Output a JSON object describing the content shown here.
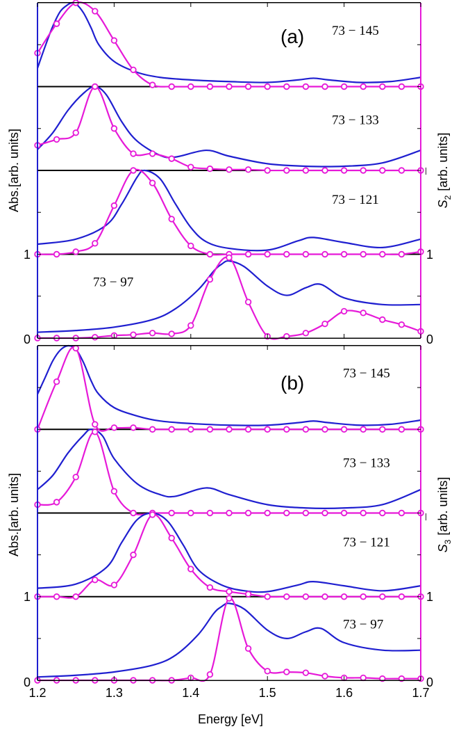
{
  "colors": {
    "absorption": "#1f1fd0",
    "spectrum": "#e619d8",
    "baseline": "#000000",
    "frame": "#000000"
  },
  "chart_data": [
    {
      "type": "line",
      "panel": "(a)",
      "xlabel": "Energy [eV]",
      "ylabel_left": "Abs.[arb. units]",
      "ylabel_right_symbol": "S",
      "ylabel_right_subscript": "2",
      "ylabel_right_units": "[arb. units]",
      "xlim": [
        1.2,
        1.7
      ],
      "x_ticks": [
        "1.2",
        "1.3",
        "1.4",
        "1.5",
        "1.6",
        "1.7"
      ],
      "y_ticks_left": [
        "0",
        "1"
      ],
      "y_ticks_right": [
        "0",
        "1"
      ],
      "traces": [
        {
          "label": "73 − 145",
          "offset": 3,
          "absorption": {
            "x": [
              1.2,
              1.21,
              1.22,
              1.23,
              1.24,
              1.245,
              1.25,
              1.26,
              1.27,
              1.28,
              1.3,
              1.33,
              1.36,
              1.4,
              1.45,
              1.5,
              1.54,
              1.56,
              1.58,
              1.62,
              1.66,
              1.7
            ],
            "y": [
              0.22,
              0.48,
              0.72,
              0.9,
              0.98,
              1.0,
              0.99,
              0.88,
              0.7,
              0.5,
              0.3,
              0.17,
              0.11,
              0.08,
              0.06,
              0.05,
              0.08,
              0.1,
              0.08,
              0.05,
              0.06,
              0.11
            ]
          },
          "spectrum": {
            "x": [
              1.2,
              1.225,
              1.25,
              1.275,
              1.3,
              1.325,
              1.35,
              1.375,
              1.4,
              1.425,
              1.45,
              1.475,
              1.5,
              1.525,
              1.55,
              1.575,
              1.6,
              1.625,
              1.65,
              1.675,
              1.7
            ],
            "y": [
              0.4,
              0.75,
              1.0,
              0.9,
              0.55,
              0.2,
              0.02,
              0.0,
              0.0,
              0.0,
              0.0,
              0.0,
              0.0,
              0.0,
              0.0,
              0.0,
              0.0,
              0.0,
              0.0,
              0.0,
              0.0
            ]
          }
        },
        {
          "label": "73 − 133",
          "offset": 2,
          "absorption": {
            "x": [
              1.2,
              1.22,
              1.24,
              1.26,
              1.275,
              1.29,
              1.31,
              1.33,
              1.36,
              1.38,
              1.42,
              1.45,
              1.5,
              1.55,
              1.6,
              1.65,
              1.7
            ],
            "y": [
              0.25,
              0.45,
              0.72,
              0.92,
              1.0,
              0.9,
              0.58,
              0.35,
              0.18,
              0.16,
              0.24,
              0.17,
              0.08,
              0.05,
              0.05,
              0.09,
              0.24
            ]
          },
          "spectrum": {
            "x": [
              1.2,
              1.225,
              1.25,
              1.275,
              1.3,
              1.325,
              1.35,
              1.375,
              1.4,
              1.425,
              1.45,
              1.475,
              1.5,
              1.525,
              1.55,
              1.575,
              1.6,
              1.625,
              1.65,
              1.675,
              1.7
            ],
            "y": [
              0.3,
              0.37,
              0.45,
              1.0,
              0.5,
              0.2,
              0.2,
              0.14,
              0.04,
              0.02,
              0.01,
              0.01,
              0.0,
              0.0,
              0.0,
              0.0,
              0.0,
              0.0,
              0.0,
              0.0,
              0.0
            ]
          }
        },
        {
          "label": "73 − 121",
          "offset": 1,
          "absorption": {
            "x": [
              1.2,
              1.25,
              1.29,
              1.31,
              1.33,
              1.34,
              1.36,
              1.38,
              1.4,
              1.42,
              1.45,
              1.5,
              1.54,
              1.56,
              1.6,
              1.65,
              1.7
            ],
            "y": [
              0.12,
              0.18,
              0.35,
              0.6,
              0.92,
              1.0,
              0.9,
              0.6,
              0.32,
              0.15,
              0.07,
              0.05,
              0.16,
              0.2,
              0.14,
              0.08,
              0.18
            ]
          },
          "spectrum": {
            "x": [
              1.2,
              1.225,
              1.25,
              1.275,
              1.3,
              1.325,
              1.35,
              1.375,
              1.4,
              1.425,
              1.45,
              1.475,
              1.5,
              1.525,
              1.55,
              1.575,
              1.6,
              1.625,
              1.65,
              1.675,
              1.7
            ],
            "y": [
              0.0,
              0.0,
              0.03,
              0.13,
              0.58,
              1.0,
              0.85,
              0.42,
              0.1,
              0.0,
              0.0,
              0.0,
              0.0,
              0.0,
              0.0,
              0.0,
              0.0,
              0.0,
              0.0,
              0.0,
              0.03
            ]
          }
        },
        {
          "label": "73 − 97",
          "offset": 0,
          "absorption": {
            "x": [
              1.2,
              1.25,
              1.3,
              1.35,
              1.38,
              1.41,
              1.43,
              1.44,
              1.45,
              1.47,
              1.5,
              1.525,
              1.55,
              1.57,
              1.6,
              1.65,
              1.7
            ],
            "y": [
              0.07,
              0.09,
              0.13,
              0.22,
              0.35,
              0.58,
              0.8,
              0.88,
              0.92,
              0.85,
              0.62,
              0.51,
              0.6,
              0.64,
              0.48,
              0.4,
              0.4
            ]
          },
          "spectrum": {
            "x": [
              1.2,
              1.225,
              1.25,
              1.275,
              1.3,
              1.325,
              1.35,
              1.375,
              1.4,
              1.425,
              1.45,
              1.475,
              1.5,
              1.525,
              1.55,
              1.575,
              1.6,
              1.625,
              1.65,
              1.675,
              1.7
            ],
            "y": [
              0.0,
              0.0,
              0.0,
              0.01,
              0.03,
              0.04,
              0.06,
              0.05,
              0.15,
              0.7,
              0.96,
              0.43,
              0.02,
              0.02,
              0.06,
              0.17,
              0.32,
              0.3,
              0.22,
              0.16,
              0.08
            ]
          }
        }
      ]
    },
    {
      "type": "line",
      "panel": "(b)",
      "xlabel": "Energy [eV]",
      "ylabel_left": "Abs.[arb. units]",
      "ylabel_right_symbol": "S",
      "ylabel_right_subscript": "3",
      "ylabel_right_units": "[arb. units]",
      "xlim": [
        1.2,
        1.7
      ],
      "x_ticks": [
        "1.2",
        "1.3",
        "1.4",
        "1.5",
        "1.6",
        "1.7"
      ],
      "y_ticks_left": [
        "0",
        "1"
      ],
      "y_ticks_right": [
        "0",
        "1"
      ],
      "traces": [
        {
          "label": "73 − 145",
          "offset": 3,
          "absorption": {
            "x": [
              1.2,
              1.21,
              1.22,
              1.23,
              1.24,
              1.25,
              1.26,
              1.27,
              1.28,
              1.3,
              1.33,
              1.36,
              1.4,
              1.45,
              1.5,
              1.54,
              1.56,
              1.58,
              1.62,
              1.66,
              1.7
            ],
            "y": [
              0.42,
              0.62,
              0.82,
              0.95,
              1.0,
              0.96,
              0.8,
              0.58,
              0.42,
              0.26,
              0.16,
              0.1,
              0.07,
              0.05,
              0.05,
              0.08,
              0.1,
              0.08,
              0.05,
              0.06,
              0.11
            ]
          },
          "spectrum": {
            "x": [
              1.2,
              1.225,
              1.25,
              1.275,
              1.3,
              1.325,
              1.35,
              1.375,
              1.4,
              1.425,
              1.45,
              1.475,
              1.5,
              1.525,
              1.55,
              1.575,
              1.6,
              1.625,
              1.65,
              1.675,
              1.7
            ],
            "y": [
              0.0,
              0.57,
              0.97,
              0.06,
              0.02,
              0.02,
              0.0,
              0.0,
              0.0,
              0.0,
              0.0,
              0.0,
              0.0,
              0.0,
              0.0,
              0.0,
              0.0,
              0.0,
              0.0,
              0.0,
              0.0
            ]
          }
        },
        {
          "label": "73 − 133",
          "offset": 2,
          "absorption": {
            "x": [
              1.2,
              1.22,
              1.24,
              1.26,
              1.27,
              1.285,
              1.3,
              1.33,
              1.36,
              1.38,
              1.42,
              1.45,
              1.5,
              1.55,
              1.6,
              1.65,
              1.7
            ],
            "y": [
              0.28,
              0.45,
              0.72,
              0.93,
              1.0,
              0.92,
              0.65,
              0.35,
              0.22,
              0.2,
              0.3,
              0.22,
              0.1,
              0.06,
              0.06,
              0.1,
              0.28
            ]
          },
          "spectrum": {
            "x": [
              1.2,
              1.225,
              1.25,
              1.275,
              1.3,
              1.325,
              1.35,
              1.375,
              1.4,
              1.425,
              1.45,
              1.475,
              1.5,
              1.525,
              1.55,
              1.575,
              1.6,
              1.625,
              1.65,
              1.675,
              1.7
            ],
            "y": [
              0.1,
              0.13,
              0.43,
              0.97,
              0.26,
              0.0,
              0.0,
              0.0,
              0.0,
              0.0,
              0.0,
              0.0,
              0.0,
              0.0,
              0.0,
              0.0,
              0.0,
              0.0,
              0.0,
              0.0,
              0.0
            ]
          }
        },
        {
          "label": "73 − 121",
          "offset": 1,
          "absorption": {
            "x": [
              1.2,
              1.25,
              1.29,
              1.31,
              1.33,
              1.35,
              1.37,
              1.39,
              1.41,
              1.44,
              1.47,
              1.5,
              1.54,
              1.56,
              1.6,
              1.65,
              1.7
            ],
            "y": [
              0.1,
              0.15,
              0.35,
              0.65,
              0.92,
              1.0,
              0.9,
              0.62,
              0.32,
              0.14,
              0.07,
              0.06,
              0.14,
              0.18,
              0.13,
              0.07,
              0.13
            ]
          },
          "spectrum": {
            "x": [
              1.2,
              1.225,
              1.25,
              1.275,
              1.3,
              1.325,
              1.35,
              1.375,
              1.4,
              1.425,
              1.45,
              1.475,
              1.5,
              1.525,
              1.55,
              1.575,
              1.6,
              1.625,
              1.65,
              1.675,
              1.7
            ],
            "y": [
              0.0,
              0.0,
              0.0,
              0.2,
              0.14,
              0.5,
              0.98,
              0.7,
              0.33,
              0.11,
              0.06,
              0.03,
              0.0,
              0.0,
              0.0,
              0.0,
              0.0,
              0.0,
              0.0,
              0.0,
              0.0
            ]
          }
        },
        {
          "label": "73 − 97",
          "offset": 0,
          "absorption": {
            "x": [
              1.2,
              1.25,
              1.3,
              1.35,
              1.38,
              1.41,
              1.43,
              1.44,
              1.45,
              1.47,
              1.5,
              1.525,
              1.55,
              1.57,
              1.6,
              1.65,
              1.7
            ],
            "y": [
              0.04,
              0.06,
              0.1,
              0.18,
              0.3,
              0.55,
              0.8,
              0.88,
              0.92,
              0.85,
              0.6,
              0.5,
              0.58,
              0.62,
              0.45,
              0.36,
              0.36
            ]
          },
          "spectrum": {
            "x": [
              1.2,
              1.225,
              1.25,
              1.275,
              1.3,
              1.325,
              1.35,
              1.375,
              1.4,
              1.425,
              1.45,
              1.475,
              1.5,
              1.525,
              1.55,
              1.575,
              1.6,
              1.625,
              1.65,
              1.675,
              1.7
            ],
            "y": [
              0.0,
              0.0,
              0.0,
              0.0,
              0.0,
              0.0,
              0.0,
              0.0,
              0.03,
              0.07,
              0.98,
              0.38,
              0.11,
              0.1,
              0.09,
              0.05,
              0.03,
              0.03,
              0.02,
              0.02,
              0.02
            ]
          }
        }
      ]
    }
  ]
}
